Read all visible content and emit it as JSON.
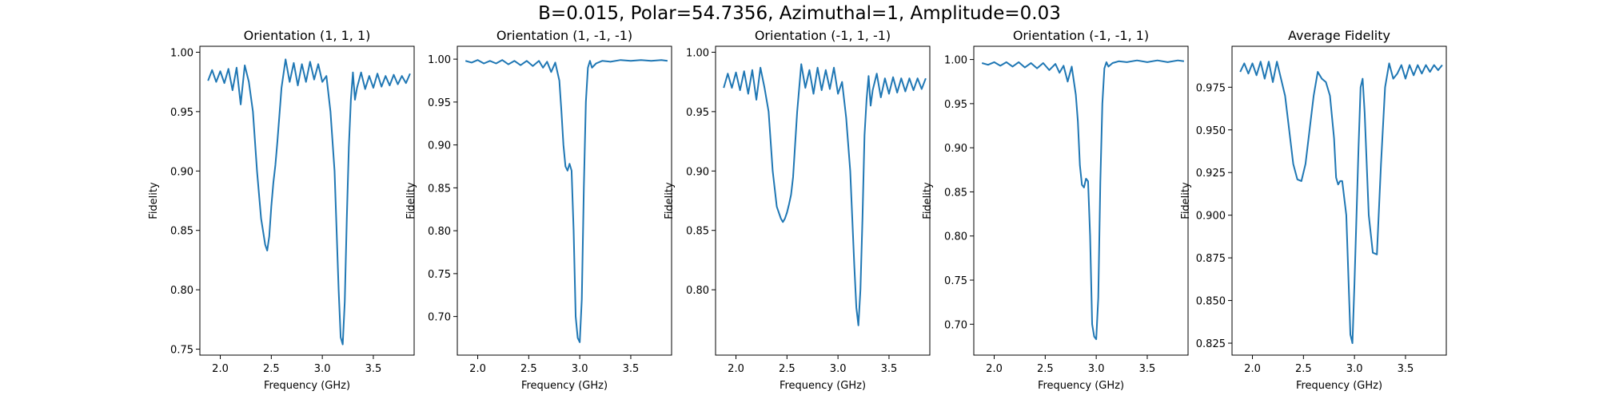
{
  "figure": {
    "suptitle": "B=0.015, Polar=54.7356, Azimuthal=1, Amplitude=0.03",
    "line_color": "#1f77b4"
  },
  "chart_data": [
    {
      "type": "line",
      "title": "Orientation (1, 1, 1)",
      "xlabel": "Frequency (GHz)",
      "ylabel": "Fidelity",
      "xlim": [
        1.8,
        3.9
      ],
      "ylim": [
        0.745,
        1.005
      ],
      "xticks": [
        2.0,
        2.5,
        3.0,
        3.5
      ],
      "yticks": [
        0.75,
        0.8,
        0.85,
        0.9,
        0.95,
        1.0
      ],
      "x": [
        1.88,
        1.92,
        1.96,
        2.0,
        2.04,
        2.08,
        2.12,
        2.16,
        2.2,
        2.24,
        2.28,
        2.32,
        2.36,
        2.4,
        2.44,
        2.46,
        2.48,
        2.5,
        2.52,
        2.54,
        2.56,
        2.6,
        2.64,
        2.68,
        2.72,
        2.76,
        2.8,
        2.84,
        2.88,
        2.92,
        2.96,
        3.0,
        3.04,
        3.08,
        3.12,
        3.14,
        3.16,
        3.18,
        3.2,
        3.22,
        3.24,
        3.26,
        3.28,
        3.3,
        3.32,
        3.34,
        3.38,
        3.42,
        3.46,
        3.5,
        3.54,
        3.58,
        3.62,
        3.66,
        3.7,
        3.74,
        3.78,
        3.82,
        3.86
      ],
      "y": [
        0.976,
        0.985,
        0.975,
        0.984,
        0.974,
        0.986,
        0.968,
        0.987,
        0.956,
        0.989,
        0.975,
        0.95,
        0.9,
        0.86,
        0.838,
        0.833,
        0.845,
        0.87,
        0.89,
        0.905,
        0.925,
        0.97,
        0.994,
        0.975,
        0.991,
        0.972,
        0.99,
        0.975,
        0.992,
        0.977,
        0.99,
        0.975,
        0.98,
        0.95,
        0.9,
        0.85,
        0.8,
        0.76,
        0.754,
        0.79,
        0.86,
        0.92,
        0.96,
        0.983,
        0.96,
        0.97,
        0.983,
        0.969,
        0.98,
        0.97,
        0.982,
        0.971,
        0.98,
        0.972,
        0.981,
        0.973,
        0.98,
        0.974,
        0.982
      ]
    },
    {
      "type": "line",
      "title": "Orientation (1, -1, -1)",
      "xlabel": "Frequency (GHz)",
      "ylabel": "Fidelity",
      "xlim": [
        1.8,
        3.9
      ],
      "ylim": [
        0.655,
        1.015
      ],
      "xticks": [
        2.0,
        2.5,
        3.0,
        3.5
      ],
      "yticks": [
        0.7,
        0.75,
        0.8,
        0.85,
        0.9,
        0.95,
        1.0
      ],
      "x": [
        1.88,
        1.94,
        2.0,
        2.06,
        2.12,
        2.18,
        2.24,
        2.3,
        2.36,
        2.42,
        2.48,
        2.54,
        2.6,
        2.64,
        2.68,
        2.72,
        2.76,
        2.8,
        2.82,
        2.84,
        2.86,
        2.88,
        2.9,
        2.92,
        2.94,
        2.96,
        2.98,
        3.0,
        3.02,
        3.04,
        3.06,
        3.08,
        3.1,
        3.12,
        3.16,
        3.22,
        3.3,
        3.4,
        3.5,
        3.6,
        3.7,
        3.8,
        3.86
      ],
      "y": [
        0.998,
        0.996,
        0.999,
        0.995,
        0.998,
        0.995,
        0.999,
        0.994,
        0.998,
        0.993,
        0.998,
        0.992,
        0.998,
        0.99,
        0.997,
        0.985,
        0.996,
        0.975,
        0.94,
        0.9,
        0.875,
        0.87,
        0.878,
        0.87,
        0.8,
        0.7,
        0.675,
        0.67,
        0.72,
        0.85,
        0.95,
        0.99,
        0.998,
        0.99,
        0.995,
        0.998,
        0.997,
        0.999,
        0.998,
        0.999,
        0.998,
        0.999,
        0.998
      ]
    },
    {
      "type": "line",
      "title": "Orientation (-1, 1, -1)",
      "xlabel": "Frequency (GHz)",
      "ylabel": "Fidelity",
      "xlim": [
        1.8,
        3.9
      ],
      "ylim": [
        0.745,
        1.005
      ],
      "xticks": [
        2.0,
        2.5,
        3.0,
        3.5
      ],
      "yticks": [
        0.8,
        0.85,
        0.9,
        0.95,
        1.0
      ],
      "x": [
        1.88,
        1.92,
        1.96,
        2.0,
        2.04,
        2.08,
        2.12,
        2.16,
        2.2,
        2.24,
        2.28,
        2.32,
        2.36,
        2.4,
        2.44,
        2.46,
        2.48,
        2.5,
        2.52,
        2.54,
        2.56,
        2.6,
        2.64,
        2.68,
        2.72,
        2.76,
        2.8,
        2.84,
        2.88,
        2.92,
        2.96,
        3.0,
        3.04,
        3.08,
        3.12,
        3.14,
        3.16,
        3.18,
        3.2,
        3.22,
        3.24,
        3.26,
        3.28,
        3.3,
        3.32,
        3.34,
        3.38,
        3.42,
        3.46,
        3.5,
        3.54,
        3.58,
        3.62,
        3.66,
        3.7,
        3.74,
        3.78,
        3.82,
        3.86
      ],
      "y": [
        0.97,
        0.982,
        0.97,
        0.983,
        0.968,
        0.984,
        0.965,
        0.985,
        0.96,
        0.987,
        0.97,
        0.95,
        0.9,
        0.87,
        0.86,
        0.857,
        0.86,
        0.865,
        0.872,
        0.88,
        0.895,
        0.95,
        0.99,
        0.97,
        0.985,
        0.965,
        0.987,
        0.968,
        0.985,
        0.969,
        0.987,
        0.965,
        0.975,
        0.945,
        0.9,
        0.86,
        0.82,
        0.785,
        0.77,
        0.8,
        0.86,
        0.93,
        0.96,
        0.98,
        0.955,
        0.968,
        0.982,
        0.962,
        0.978,
        0.965,
        0.979,
        0.966,
        0.978,
        0.967,
        0.978,
        0.968,
        0.978,
        0.969,
        0.978
      ]
    },
    {
      "type": "line",
      "title": "Orientation (-1, -1, 1)",
      "xlabel": "Frequency (GHz)",
      "ylabel": "Fidelity",
      "xlim": [
        1.8,
        3.9
      ],
      "ylim": [
        0.665,
        1.015
      ],
      "xticks": [
        2.0,
        2.5,
        3.0,
        3.5
      ],
      "yticks": [
        0.7,
        0.75,
        0.8,
        0.85,
        0.9,
        0.95,
        1.0
      ],
      "x": [
        1.88,
        1.94,
        2.0,
        2.06,
        2.12,
        2.18,
        2.24,
        2.3,
        2.36,
        2.42,
        2.48,
        2.54,
        2.6,
        2.64,
        2.68,
        2.72,
        2.76,
        2.8,
        2.82,
        2.84,
        2.86,
        2.88,
        2.9,
        2.92,
        2.94,
        2.96,
        2.98,
        3.0,
        3.02,
        3.04,
        3.06,
        3.08,
        3.1,
        3.12,
        3.16,
        3.22,
        3.3,
        3.4,
        3.5,
        3.6,
        3.7,
        3.8,
        3.86
      ],
      "y": [
        0.996,
        0.994,
        0.997,
        0.993,
        0.997,
        0.992,
        0.997,
        0.991,
        0.996,
        0.99,
        0.996,
        0.988,
        0.995,
        0.985,
        0.993,
        0.975,
        0.992,
        0.96,
        0.93,
        0.88,
        0.858,
        0.855,
        0.865,
        0.862,
        0.8,
        0.7,
        0.686,
        0.683,
        0.73,
        0.86,
        0.95,
        0.99,
        0.997,
        0.992,
        0.996,
        0.998,
        0.997,
        0.999,
        0.997,
        0.999,
        0.997,
        0.999,
        0.998
      ]
    },
    {
      "type": "line",
      "title": "Average Fidelity",
      "xlabel": "Frequency (GHz)",
      "ylabel": "Fidelity",
      "xlim": [
        1.8,
        3.9
      ],
      "ylim": [
        0.818,
        0.999
      ],
      "xticks": [
        2.0,
        2.5,
        3.0,
        3.5
      ],
      "yticks": [
        0.825,
        0.85,
        0.875,
        0.9,
        0.925,
        0.95,
        0.975
      ],
      "x": [
        1.88,
        1.92,
        1.96,
        2.0,
        2.04,
        2.08,
        2.12,
        2.16,
        2.2,
        2.24,
        2.28,
        2.32,
        2.36,
        2.4,
        2.44,
        2.48,
        2.52,
        2.56,
        2.6,
        2.64,
        2.68,
        2.72,
        2.76,
        2.8,
        2.82,
        2.84,
        2.86,
        2.88,
        2.92,
        2.96,
        2.98,
        3.0,
        3.02,
        3.04,
        3.06,
        3.08,
        3.1,
        3.14,
        3.18,
        3.22,
        3.26,
        3.3,
        3.34,
        3.38,
        3.42,
        3.46,
        3.5,
        3.54,
        3.58,
        3.62,
        3.66,
        3.7,
        3.74,
        3.78,
        3.82,
        3.86
      ],
      "y": [
        0.984,
        0.989,
        0.983,
        0.989,
        0.982,
        0.99,
        0.98,
        0.99,
        0.978,
        0.99,
        0.98,
        0.97,
        0.95,
        0.93,
        0.921,
        0.92,
        0.93,
        0.95,
        0.97,
        0.984,
        0.98,
        0.978,
        0.97,
        0.945,
        0.922,
        0.918,
        0.92,
        0.92,
        0.9,
        0.83,
        0.825,
        0.86,
        0.9,
        0.94,
        0.975,
        0.98,
        0.96,
        0.9,
        0.878,
        0.877,
        0.93,
        0.975,
        0.989,
        0.98,
        0.983,
        0.988,
        0.98,
        0.988,
        0.982,
        0.988,
        0.983,
        0.988,
        0.984,
        0.988,
        0.985,
        0.988
      ]
    }
  ]
}
